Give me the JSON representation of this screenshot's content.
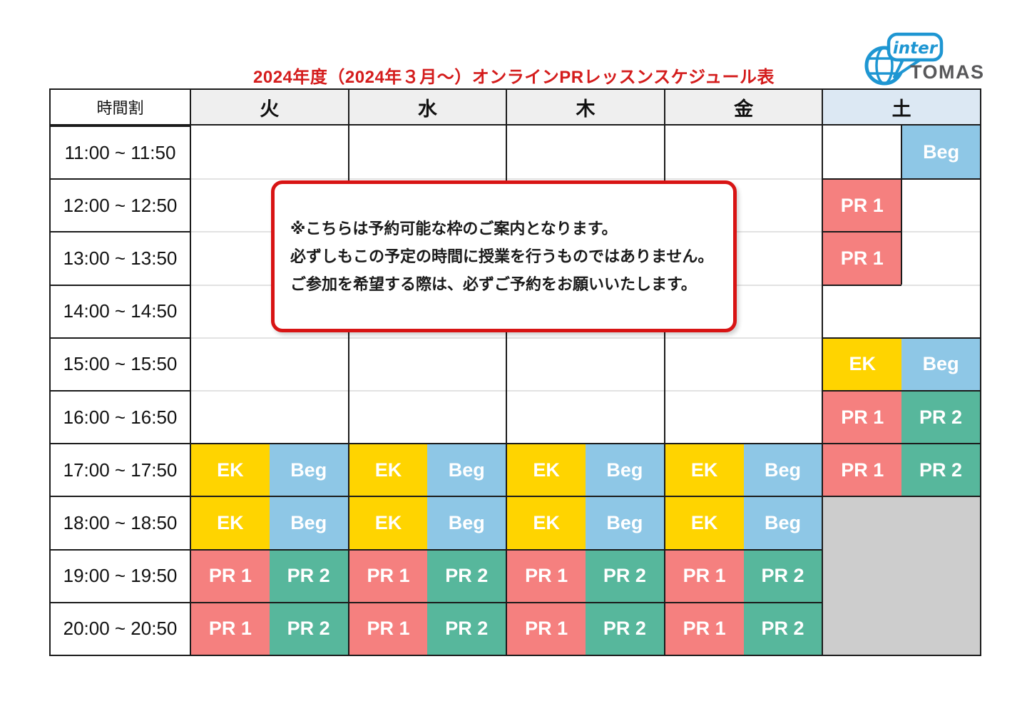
{
  "page": {
    "title": "2024年度（2024年３月～）オンラインPRレッスンスケジュール表"
  },
  "logo": {
    "inter": "inter",
    "tomas": "TOMAS",
    "brand_blue": "#1e96d2",
    "brand_gray": "#58585a"
  },
  "notice": {
    "line1": "※こちらは予約可能な枠のご案内となります。",
    "line2": "必ずしもこの予定の時間に授業を行うものではありません。",
    "line3": "ご参加を希望する際は、必ずご予約をお願いいたします。"
  },
  "legend_colors": {
    "EK": "#ffd400",
    "Beg": "#8ec7e6",
    "PR 1": "#f5807f",
    "PR 2": "#57b79c",
    "blocked": "#cdcdcd"
  },
  "table": {
    "corner": "時間割",
    "row_times": [
      "11:00 ~ 11:50",
      "12:00 ~ 12:50",
      "13:00 ~ 13:50",
      "14:00 ~ 14:50",
      "15:00 ~ 15:50",
      "16:00 ~ 16:50",
      "17:00 ~ 17:50",
      "18:00 ~ 18:50",
      "19:00 ~ 19:50",
      "20:00 ~ 20:50"
    ],
    "columns": [
      {
        "label": "火",
        "highlight": false,
        "cells": [
          [
            null,
            null
          ],
          [
            null,
            null
          ],
          [
            null,
            null
          ],
          [
            null,
            null
          ],
          [
            null,
            null
          ],
          [
            null,
            null
          ],
          [
            "EK",
            "Beg"
          ],
          [
            "EK",
            "Beg"
          ],
          [
            "PR 1",
            "PR 2"
          ],
          [
            "PR 1",
            "PR 2"
          ]
        ]
      },
      {
        "label": "水",
        "highlight": false,
        "cells": [
          [
            null,
            null
          ],
          [
            null,
            null
          ],
          [
            null,
            null
          ],
          [
            null,
            null
          ],
          [
            null,
            null
          ],
          [
            null,
            null
          ],
          [
            "EK",
            "Beg"
          ],
          [
            "EK",
            "Beg"
          ],
          [
            "PR 1",
            "PR 2"
          ],
          [
            "PR 1",
            "PR 2"
          ]
        ]
      },
      {
        "label": "木",
        "highlight": false,
        "cells": [
          [
            null,
            null
          ],
          [
            null,
            null
          ],
          [
            null,
            null
          ],
          [
            null,
            null
          ],
          [
            null,
            null
          ],
          [
            null,
            null
          ],
          [
            "EK",
            "Beg"
          ],
          [
            "EK",
            "Beg"
          ],
          [
            "PR 1",
            "PR 2"
          ],
          [
            "PR 1",
            "PR 2"
          ]
        ]
      },
      {
        "label": "金",
        "highlight": false,
        "cells": [
          [
            null,
            null
          ],
          [
            null,
            null
          ],
          [
            null,
            null
          ],
          [
            null,
            null
          ],
          [
            null,
            null
          ],
          [
            null,
            null
          ],
          [
            "EK",
            "Beg"
          ],
          [
            "EK",
            "Beg"
          ],
          [
            "PR 1",
            "PR 2"
          ],
          [
            "PR 1",
            "PR 2"
          ]
        ]
      },
      {
        "label": "土",
        "highlight": true,
        "cells": [
          [
            null,
            "Beg"
          ],
          [
            "PR 1",
            null
          ],
          [
            "PR 1",
            null
          ],
          [
            null,
            null
          ],
          [
            "EK",
            "Beg"
          ],
          [
            "PR 1",
            "PR 2"
          ],
          [
            "PR 1",
            "PR 2"
          ],
          "blocked",
          "blocked",
          "blocked"
        ]
      }
    ]
  }
}
